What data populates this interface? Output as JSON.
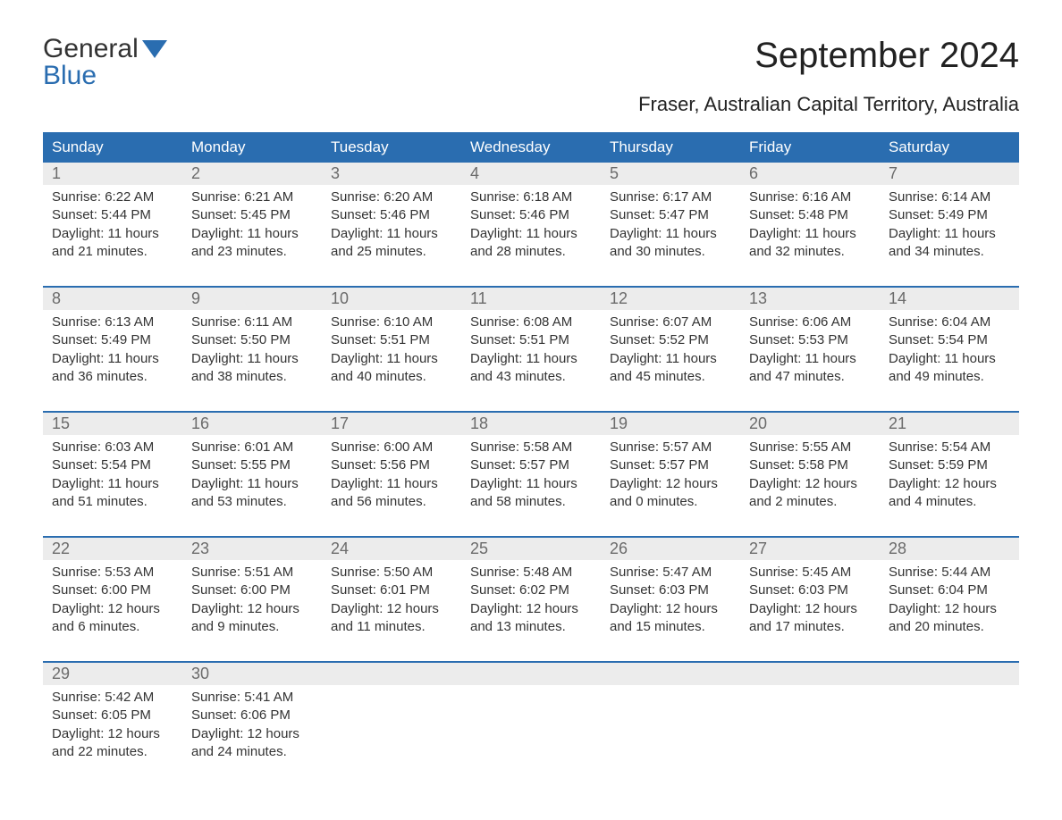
{
  "logo": {
    "line1": "General",
    "line2": "Blue"
  },
  "title": "September 2024",
  "subtitle": "Fraser, Australian Capital Territory, Australia",
  "colors": {
    "header_bg": "#2a6db0",
    "header_text": "#ffffff",
    "rule": "#2a6db0",
    "daynum_bg": "#ececec",
    "daynum_text": "#6b6b6b",
    "body_text": "#333333",
    "page_bg": "#ffffff",
    "logo_accent": "#2a6db0"
  },
  "typography": {
    "title_fontsize": 40,
    "subtitle_fontsize": 22,
    "header_fontsize": 17,
    "daynum_fontsize": 18,
    "cell_fontsize": 15
  },
  "dayNames": [
    "Sunday",
    "Monday",
    "Tuesday",
    "Wednesday",
    "Thursday",
    "Friday",
    "Saturday"
  ],
  "weeks": [
    [
      {
        "num": "1",
        "sunrise": "6:22 AM",
        "sunset": "5:44 PM",
        "daylight_h": "11",
        "daylight_m": "21"
      },
      {
        "num": "2",
        "sunrise": "6:21 AM",
        "sunset": "5:45 PM",
        "daylight_h": "11",
        "daylight_m": "23"
      },
      {
        "num": "3",
        "sunrise": "6:20 AM",
        "sunset": "5:46 PM",
        "daylight_h": "11",
        "daylight_m": "25"
      },
      {
        "num": "4",
        "sunrise": "6:18 AM",
        "sunset": "5:46 PM",
        "daylight_h": "11",
        "daylight_m": "28"
      },
      {
        "num": "5",
        "sunrise": "6:17 AM",
        "sunset": "5:47 PM",
        "daylight_h": "11",
        "daylight_m": "30"
      },
      {
        "num": "6",
        "sunrise": "6:16 AM",
        "sunset": "5:48 PM",
        "daylight_h": "11",
        "daylight_m": "32"
      },
      {
        "num": "7",
        "sunrise": "6:14 AM",
        "sunset": "5:49 PM",
        "daylight_h": "11",
        "daylight_m": "34"
      }
    ],
    [
      {
        "num": "8",
        "sunrise": "6:13 AM",
        "sunset": "5:49 PM",
        "daylight_h": "11",
        "daylight_m": "36"
      },
      {
        "num": "9",
        "sunrise": "6:11 AM",
        "sunset": "5:50 PM",
        "daylight_h": "11",
        "daylight_m": "38"
      },
      {
        "num": "10",
        "sunrise": "6:10 AM",
        "sunset": "5:51 PM",
        "daylight_h": "11",
        "daylight_m": "40"
      },
      {
        "num": "11",
        "sunrise": "6:08 AM",
        "sunset": "5:51 PM",
        "daylight_h": "11",
        "daylight_m": "43"
      },
      {
        "num": "12",
        "sunrise": "6:07 AM",
        "sunset": "5:52 PM",
        "daylight_h": "11",
        "daylight_m": "45"
      },
      {
        "num": "13",
        "sunrise": "6:06 AM",
        "sunset": "5:53 PM",
        "daylight_h": "11",
        "daylight_m": "47"
      },
      {
        "num": "14",
        "sunrise": "6:04 AM",
        "sunset": "5:54 PM",
        "daylight_h": "11",
        "daylight_m": "49"
      }
    ],
    [
      {
        "num": "15",
        "sunrise": "6:03 AM",
        "sunset": "5:54 PM",
        "daylight_h": "11",
        "daylight_m": "51"
      },
      {
        "num": "16",
        "sunrise": "6:01 AM",
        "sunset": "5:55 PM",
        "daylight_h": "11",
        "daylight_m": "53"
      },
      {
        "num": "17",
        "sunrise": "6:00 AM",
        "sunset": "5:56 PM",
        "daylight_h": "11",
        "daylight_m": "56"
      },
      {
        "num": "18",
        "sunrise": "5:58 AM",
        "sunset": "5:57 PM",
        "daylight_h": "11",
        "daylight_m": "58"
      },
      {
        "num": "19",
        "sunrise": "5:57 AM",
        "sunset": "5:57 PM",
        "daylight_h": "12",
        "daylight_m": "0"
      },
      {
        "num": "20",
        "sunrise": "5:55 AM",
        "sunset": "5:58 PM",
        "daylight_h": "12",
        "daylight_m": "2"
      },
      {
        "num": "21",
        "sunrise": "5:54 AM",
        "sunset": "5:59 PM",
        "daylight_h": "12",
        "daylight_m": "4"
      }
    ],
    [
      {
        "num": "22",
        "sunrise": "5:53 AM",
        "sunset": "6:00 PM",
        "daylight_h": "12",
        "daylight_m": "6"
      },
      {
        "num": "23",
        "sunrise": "5:51 AM",
        "sunset": "6:00 PM",
        "daylight_h": "12",
        "daylight_m": "9"
      },
      {
        "num": "24",
        "sunrise": "5:50 AM",
        "sunset": "6:01 PM",
        "daylight_h": "12",
        "daylight_m": "11"
      },
      {
        "num": "25",
        "sunrise": "5:48 AM",
        "sunset": "6:02 PM",
        "daylight_h": "12",
        "daylight_m": "13"
      },
      {
        "num": "26",
        "sunrise": "5:47 AM",
        "sunset": "6:03 PM",
        "daylight_h": "12",
        "daylight_m": "15"
      },
      {
        "num": "27",
        "sunrise": "5:45 AM",
        "sunset": "6:03 PM",
        "daylight_h": "12",
        "daylight_m": "17"
      },
      {
        "num": "28",
        "sunrise": "5:44 AM",
        "sunset": "6:04 PM",
        "daylight_h": "12",
        "daylight_m": "20"
      }
    ],
    [
      {
        "num": "29",
        "sunrise": "5:42 AM",
        "sunset": "6:05 PM",
        "daylight_h": "12",
        "daylight_m": "22"
      },
      {
        "num": "30",
        "sunrise": "5:41 AM",
        "sunset": "6:06 PM",
        "daylight_h": "12",
        "daylight_m": "24"
      },
      null,
      null,
      null,
      null,
      null
    ]
  ]
}
